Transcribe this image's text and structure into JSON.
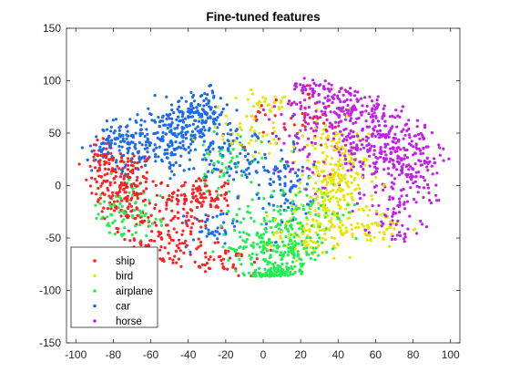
{
  "chart_data": {
    "type": "scatter",
    "title": "Fine-tuned features",
    "xlabel": "",
    "ylabel": "",
    "xlim": [
      -105,
      105
    ],
    "ylim": [
      -150,
      150
    ],
    "xticks": [
      -100,
      -80,
      -60,
      -40,
      -20,
      0,
      20,
      40,
      60,
      80,
      100
    ],
    "yticks": [
      -150,
      -100,
      -50,
      0,
      50,
      100,
      150
    ],
    "xtick_labels": [
      "-100",
      "-80",
      "-60",
      "-40",
      "-20",
      "0",
      "20",
      "40",
      "60",
      "80",
      "100"
    ],
    "ytick_labels": [
      "-150",
      "-100",
      "-50",
      "0",
      "50",
      "100",
      "150"
    ],
    "grid": false,
    "legend_position": "bottom-left",
    "series": [
      {
        "name": "ship",
        "color": "#ff2020",
        "clusters": [
          {
            "cx": -75,
            "cy": 0,
            "sx": 9,
            "sy": 18,
            "n": 170
          },
          {
            "cx": -35,
            "cy": -10,
            "sx": 9,
            "sy": 10,
            "n": 110
          },
          {
            "cx": -55,
            "cy": -55,
            "sx": 14,
            "sy": 18,
            "n": 140
          },
          {
            "cx": -85,
            "cy": 25,
            "sx": 5,
            "sy": 10,
            "n": 40
          },
          {
            "cx": -20,
            "cy": -75,
            "sx": 8,
            "sy": 10,
            "n": 40
          },
          {
            "cx": 15,
            "cy": 65,
            "sx": 12,
            "sy": 15,
            "n": 40
          }
        ]
      },
      {
        "name": "bird",
        "color": "#e6e600",
        "clusters": [
          {
            "cx": 38,
            "cy": 5,
            "sx": 9,
            "sy": 28,
            "n": 260
          },
          {
            "cx": 25,
            "cy": -45,
            "sx": 10,
            "sy": 12,
            "n": 80
          },
          {
            "cx": 58,
            "cy": -40,
            "sx": 10,
            "sy": 10,
            "n": 60
          },
          {
            "cx": -10,
            "cy": 50,
            "sx": 12,
            "sy": 12,
            "n": 40
          },
          {
            "cx": 5,
            "cy": 85,
            "sx": 8,
            "sy": 8,
            "n": 30
          }
        ]
      },
      {
        "name": "airplane",
        "color": "#20ee50",
        "clusters": [
          {
            "cx": 8,
            "cy": -60,
            "sx": 13,
            "sy": 22,
            "n": 280
          },
          {
            "cx": 5,
            "cy": -100,
            "sx": 8,
            "sy": 7,
            "n": 120
          },
          {
            "cx": -75,
            "cy": -30,
            "sx": 10,
            "sy": 15,
            "n": 80
          },
          {
            "cx": -20,
            "cy": 15,
            "sx": 10,
            "sy": 15,
            "n": 60
          },
          {
            "cx": 30,
            "cy": -20,
            "sx": 10,
            "sy": 10,
            "n": 40
          }
        ]
      },
      {
        "name": "car",
        "color": "#1a6af0",
        "clusters": [
          {
            "cx": -55,
            "cy": 42,
            "sx": 14,
            "sy": 14,
            "n": 220
          },
          {
            "cx": -35,
            "cy": 70,
            "sx": 9,
            "sy": 10,
            "n": 150
          },
          {
            "cx": -80,
            "cy": 40,
            "sx": 7,
            "sy": 9,
            "n": 60
          },
          {
            "cx": -15,
            "cy": 30,
            "sx": 10,
            "sy": 15,
            "n": 90
          },
          {
            "cx": 10,
            "cy": 0,
            "sx": 8,
            "sy": 20,
            "n": 80
          },
          {
            "cx": -25,
            "cy": -40,
            "sx": 8,
            "sy": 10,
            "n": 40
          }
        ]
      },
      {
        "name": "horse",
        "color": "#c020e8",
        "clusters": [
          {
            "cx": 62,
            "cy": 40,
            "sx": 14,
            "sy": 24,
            "n": 300
          },
          {
            "cx": 40,
            "cy": 75,
            "sx": 14,
            "sy": 12,
            "n": 140
          },
          {
            "cx": 80,
            "cy": 20,
            "sx": 7,
            "sy": 20,
            "n": 90
          },
          {
            "cx": 70,
            "cy": -25,
            "sx": 8,
            "sy": 15,
            "n": 60
          },
          {
            "cx": 20,
            "cy": 40,
            "sx": 8,
            "sy": 20,
            "n": 40
          },
          {
            "cx": 25,
            "cy": 95,
            "sx": 10,
            "sy": 5,
            "n": 30
          }
        ]
      }
    ]
  }
}
